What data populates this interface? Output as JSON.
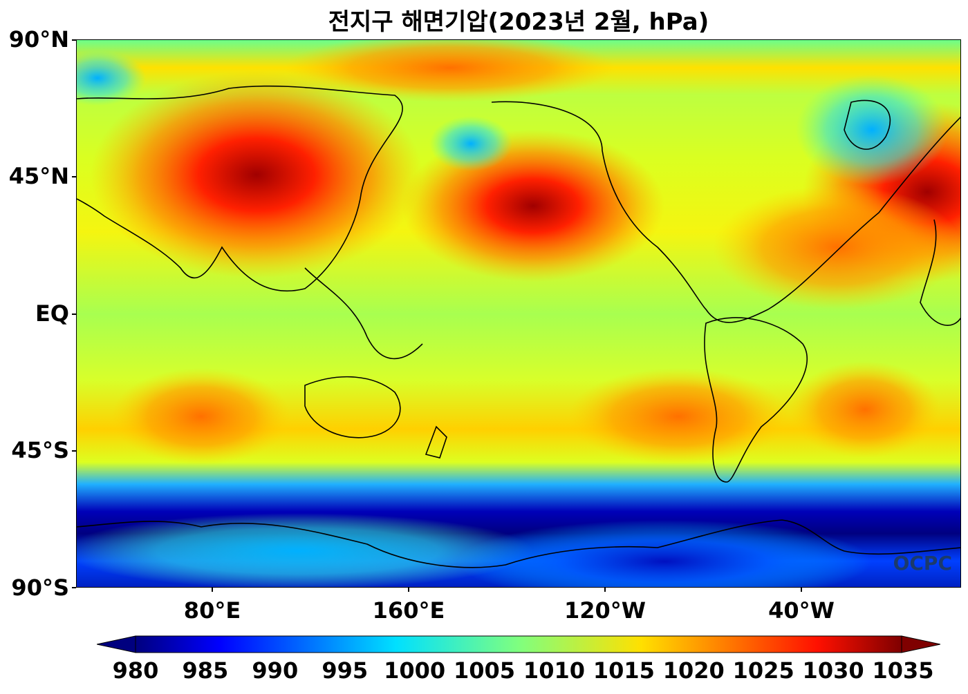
{
  "title": "전지구 해면기압(2023년 2월, hPa)",
  "watermark": "OCPC",
  "axes": {
    "lat_labels": [
      "90°N",
      "45°N",
      "EQ",
      "45°S",
      "90°S"
    ],
    "lon_labels": [
      "80°E",
      "160°E",
      "120°W",
      "40°W"
    ]
  },
  "colorbar": {
    "ticks": [
      "980",
      "985",
      "990",
      "995",
      "1000",
      "1005",
      "1010",
      "1015",
      "1020",
      "1025",
      "1030",
      "1035"
    ],
    "colormap": "jet",
    "min": 980,
    "max": 1035,
    "extend": "both"
  },
  "colors": {
    "low": "#00007f",
    "mid": "#7fff7f",
    "high": "#7f0000",
    "coastline": "#000000",
    "watermark": "#1b3a6b"
  },
  "map": {
    "projection": "equirectangular",
    "central_longitude": "Pacific-centered",
    "field": "sea level pressure"
  }
}
